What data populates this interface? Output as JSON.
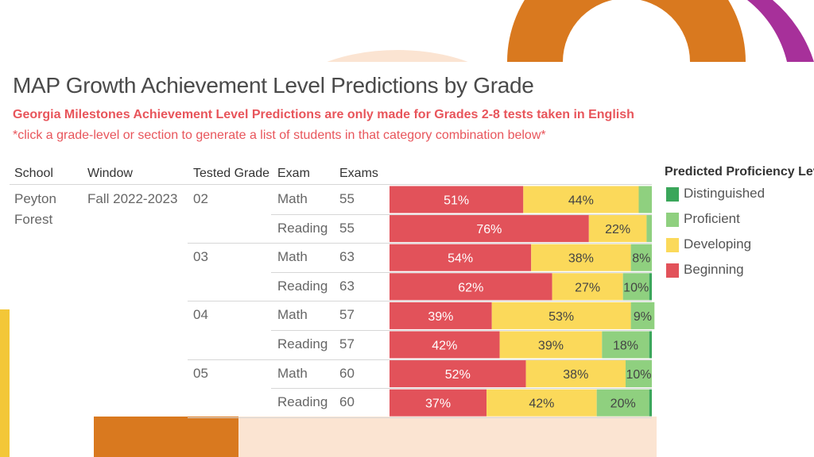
{
  "title": "MAP Growth Achievement Level Predictions by Grade",
  "subtitle": "Georgia Milestones Achievement Level Predictions are only made for Grades 2-8 tests taken in English",
  "note": "*click a grade-level or section to generate a list of students in that category combination below*",
  "table": {
    "headers": {
      "school": "School",
      "window": "Window",
      "grade": "Tested Grade",
      "exam": "Exam",
      "exams": "Exams"
    },
    "school_line1": "Peyton",
    "school_line2": "Forest",
    "window": "Fall 2022-2023",
    "rows": [
      {
        "grade": "02",
        "exam": "Math",
        "count": "55"
      },
      {
        "grade": "",
        "exam": "Reading",
        "count": "55"
      },
      {
        "grade": "03",
        "exam": "Math",
        "count": "63"
      },
      {
        "grade": "",
        "exam": "Reading",
        "count": "63"
      },
      {
        "grade": "04",
        "exam": "Math",
        "count": "57"
      },
      {
        "grade": "",
        "exam": "Reading",
        "count": "57"
      },
      {
        "grade": "05",
        "exam": "Math",
        "count": "60"
      },
      {
        "grade": "",
        "exam": "Reading",
        "count": "60"
      }
    ]
  },
  "legend": {
    "title": "Predicted Proficiency Level",
    "items": [
      {
        "label": "Distinguished",
        "color": "#3aa65a"
      },
      {
        "label": "Proficient",
        "color": "#8fd07f"
      },
      {
        "label": "Developing",
        "color": "#fbd95a"
      },
      {
        "label": "Beginning",
        "color": "#e2525a"
      }
    ]
  },
  "chart_data": {
    "type": "bar",
    "stacked": true,
    "orientation": "horizontal",
    "categories": [
      "02 Math",
      "02 Reading",
      "03 Math",
      "03 Reading",
      "04 Math",
      "04 Reading",
      "05 Math",
      "05 Reading"
    ],
    "series": [
      {
        "name": "Beginning",
        "color": "#e2525a",
        "values": [
          51,
          76,
          54,
          62,
          39,
          42,
          52,
          37
        ],
        "labels": [
          "51%",
          "76%",
          "54%",
          "62%",
          "39%",
          "42%",
          "52%",
          "37%"
        ]
      },
      {
        "name": "Developing",
        "color": "#fbd95a",
        "values": [
          44,
          22,
          38,
          27,
          53,
          39,
          38,
          42
        ],
        "labels": [
          "44%",
          "22%",
          "38%",
          "27%",
          "53%",
          "39%",
          "38%",
          "42%"
        ]
      },
      {
        "name": "Proficient",
        "color": "#8fd07f",
        "values": [
          5,
          2,
          8,
          10,
          9,
          18,
          10,
          20
        ],
        "labels": [
          "",
          "",
          "8%",
          "10%",
          "9%",
          "18%",
          "10%",
          "20%"
        ]
      },
      {
        "name": "Distinguished",
        "color": "#3aa65a",
        "values": [
          0,
          0,
          0,
          1,
          0,
          1,
          0,
          1
        ],
        "labels": [
          "",
          "",
          "",
          "",
          "",
          "",
          "",
          ""
        ]
      }
    ],
    "xlim": [
      0,
      100
    ]
  }
}
